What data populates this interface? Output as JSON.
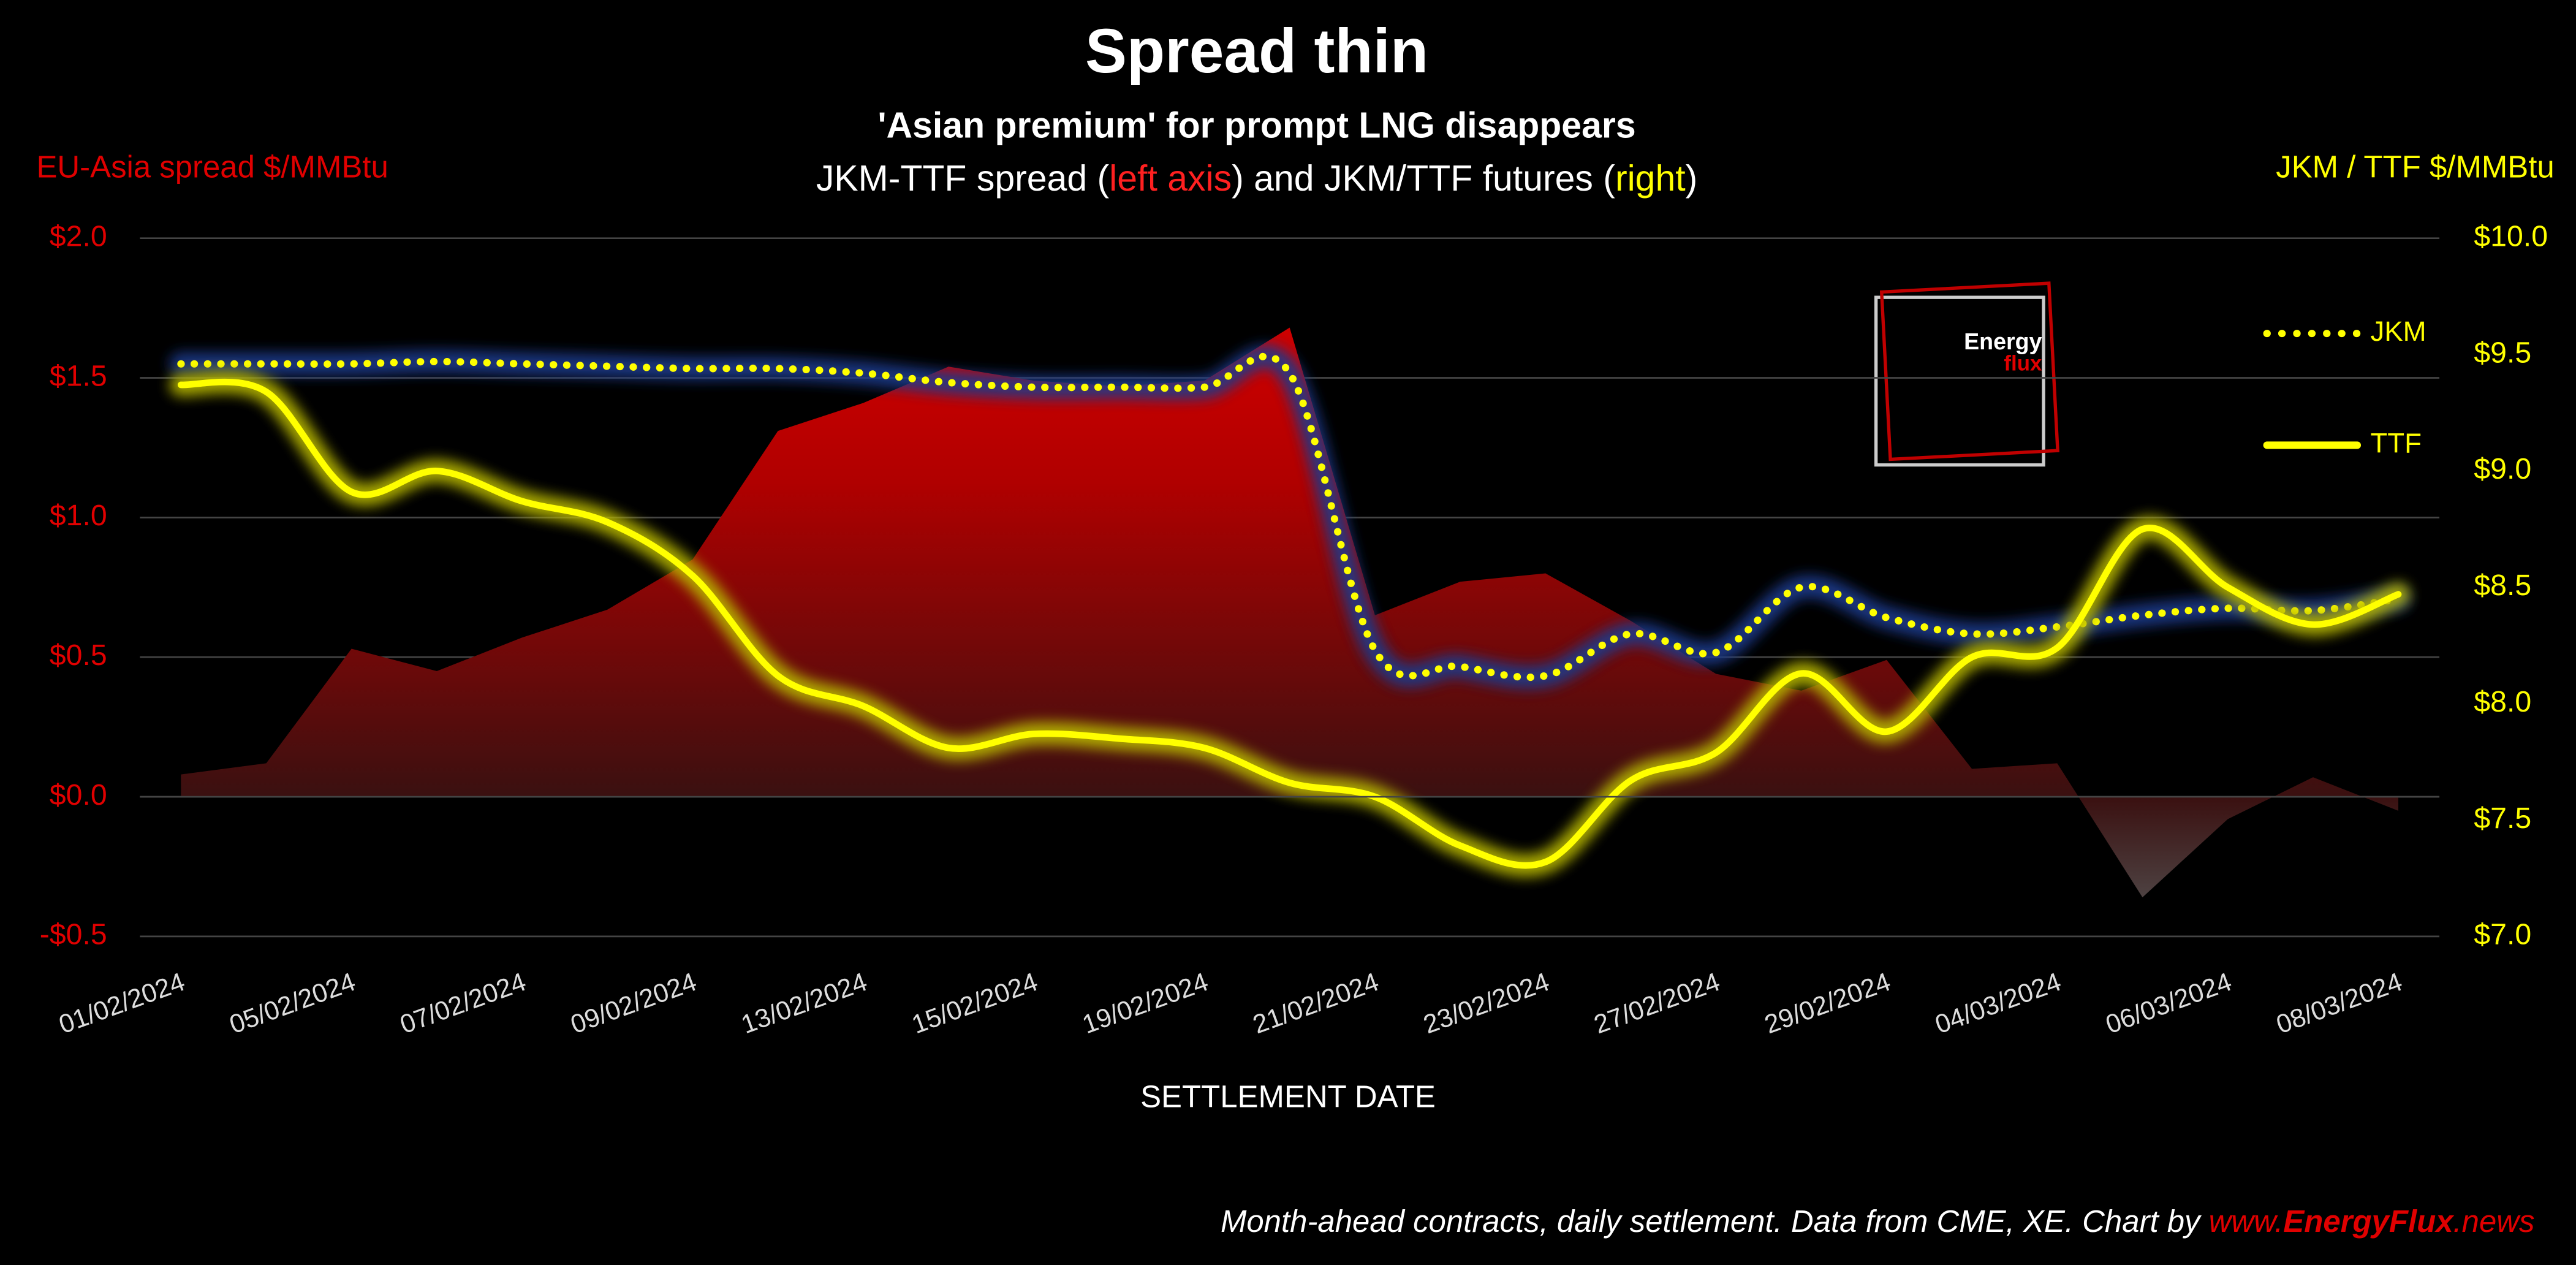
{
  "chart_data": {
    "type": "area-line",
    "title": "Spread thin",
    "subtitle": "'Asian premium' for prompt LNG disappears",
    "subtitle2_parts": [
      "JKM-TTF spread (",
      "left axis",
      ") and JKM/TTF futures (",
      "right",
      ")"
    ],
    "y_label": "EU-Asia spread $/MMBtu",
    "y2_label": "JKM / TTF $/MMBtu",
    "x_label": "SETTLEMENT DATE",
    "footer_parts": [
      "Month-ahead contracts, daily settlement. Data from CME, XE. Chart by ",
      "www.",
      "EnergyFlux",
      ".news"
    ],
    "logo": [
      "Energy",
      "flux"
    ],
    "categories": [
      "01/02/2024",
      null,
      "05/02/2024",
      null,
      "07/02/2024",
      null,
      "09/02/2024",
      null,
      "13/02/2024",
      null,
      "15/02/2024",
      null,
      "19/02/2024",
      null,
      "21/02/2024",
      null,
      "23/02/2024",
      null,
      "27/02/2024",
      null,
      "29/02/2024",
      null,
      "04/03/2024",
      null,
      "06/03/2024",
      null,
      "08/03/2024"
    ],
    "series": [
      {
        "name": "JKM-TTF spread",
        "kind": "area",
        "color": "#c00000",
        "axis": "y",
        "values": [
          0.08,
          0.12,
          0.53,
          0.45,
          0.57,
          0.67,
          0.85,
          1.31,
          1.41,
          1.54,
          1.49,
          1.47,
          1.49,
          1.68,
          0.65,
          0.77,
          0.8,
          0.63,
          0.44,
          0.38,
          0.49,
          0.1,
          0.12,
          -0.36,
          -0.08,
          0.07,
          -0.05
        ]
      },
      {
        "name": "JKM",
        "kind": "dotted",
        "color": "#ffff00",
        "glow": "#1f3a8a",
        "axis": "y2",
        "values": [
          9.46,
          9.46,
          9.46,
          9.47,
          9.46,
          9.45,
          9.44,
          9.44,
          9.42,
          9.38,
          9.36,
          9.36,
          9.36,
          9.42,
          8.23,
          8.16,
          8.12,
          8.3,
          8.22,
          8.5,
          8.37,
          8.3,
          8.33,
          8.38,
          8.41,
          8.4,
          8.45
        ]
      },
      {
        "name": "TTF",
        "kind": "solid",
        "color": "#ffff00",
        "glow": "#b8b800",
        "axis": "y2",
        "values": [
          9.37,
          9.34,
          8.91,
          9.0,
          8.87,
          8.78,
          8.55,
          8.12,
          7.99,
          7.81,
          7.87,
          7.85,
          7.81,
          7.66,
          7.6,
          7.39,
          7.32,
          7.67,
          7.79,
          8.13,
          7.88,
          8.2,
          8.24,
          8.75,
          8.5,
          8.34,
          8.47
        ]
      }
    ],
    "ylim": [
      -0.5,
      2.0
    ],
    "yticks": [
      {
        "value": -0.5,
        "label": "-$0.5"
      },
      {
        "value": 0,
        "label": "$0.0"
      },
      {
        "value": 0.5,
        "label": "$0.5"
      },
      {
        "value": 1.0,
        "label": "$1.0"
      },
      {
        "value": 1.5,
        "label": "$1.5"
      },
      {
        "value": 2.0,
        "label": "$2.0"
      }
    ],
    "y2lim": [
      7.0,
      10.0
    ],
    "y2ticks": [
      {
        "value": 7.0,
        "label": "$7.0"
      },
      {
        "value": 7.5,
        "label": "$7.5"
      },
      {
        "value": 8.0,
        "label": "$8.0"
      },
      {
        "value": 8.5,
        "label": "$8.5"
      },
      {
        "value": 9.0,
        "label": "$9.0"
      },
      {
        "value": 9.5,
        "label": "$9.5"
      },
      {
        "value": 10.0,
        "label": "$10.0"
      }
    ],
    "grid": true,
    "legend": "upper right"
  }
}
